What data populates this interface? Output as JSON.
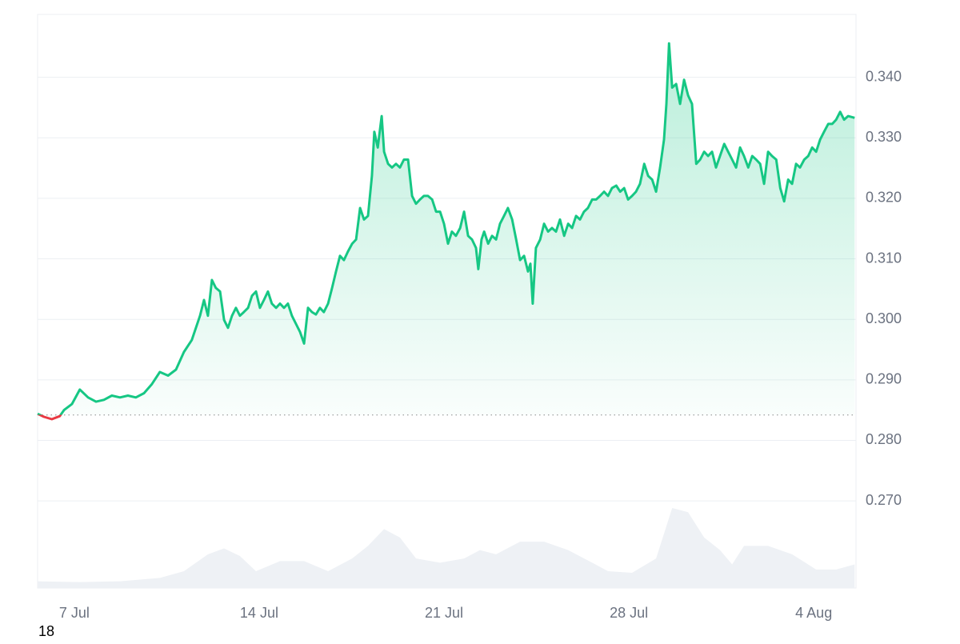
{
  "chart_data": {
    "type": "line",
    "x": [
      5.61,
      5.85,
      6.15,
      6.45,
      6.61,
      6.91,
      7.21,
      7.52,
      7.82,
      8.12,
      8.42,
      8.73,
      9.03,
      9.33,
      9.64,
      9.94,
      10.24,
      10.55,
      10.85,
      11.15,
      11.45,
      11.76,
      11.91,
      12.06,
      12.21,
      12.36,
      12.52,
      12.67,
      12.82,
      12.97,
      13.12,
      13.27,
      13.42,
      13.58,
      13.73,
      13.88,
      14.03,
      14.18,
      14.33,
      14.48,
      14.64,
      14.79,
      14.94,
      15.09,
      15.24,
      15.39,
      15.55,
      15.7,
      15.85,
      16.0,
      16.15,
      16.3,
      16.45,
      16.61,
      16.76,
      16.91,
      17.06,
      17.21,
      17.36,
      17.52,
      17.67,
      17.82,
      17.97,
      18.12,
      18.27,
      18.36,
      18.49,
      18.64,
      18.73,
      18.88,
      19.03,
      19.18,
      19.33,
      19.48,
      19.64,
      19.79,
      19.94,
      20.09,
      20.24,
      20.39,
      20.55,
      20.7,
      20.85,
      21.0,
      21.15,
      21.3,
      21.45,
      21.61,
      21.76,
      21.91,
      22.06,
      22.21,
      22.3,
      22.42,
      22.52,
      22.67,
      22.82,
      22.97,
      23.12,
      23.27,
      23.42,
      23.58,
      23.73,
      23.88,
      24.03,
      24.18,
      24.27,
      24.36,
      24.48,
      24.64,
      24.79,
      24.94,
      25.09,
      25.24,
      25.39,
      25.55,
      25.7,
      25.85,
      26.0,
      26.15,
      26.3,
      26.45,
      26.61,
      26.76,
      26.91,
      27.06,
      27.21,
      27.36,
      27.52,
      27.67,
      27.82,
      27.97,
      28.12,
      28.27,
      28.42,
      28.58,
      28.73,
      28.88,
      29.03,
      29.18,
      29.33,
      29.42,
      29.52,
      29.64,
      29.79,
      29.94,
      30.09,
      30.24,
      30.39,
      30.55,
      30.7,
      30.85,
      31.0,
      31.15,
      31.3,
      31.45,
      31.61,
      31.76,
      31.91,
      32.06,
      32.21,
      32.36,
      32.52,
      32.67,
      32.82,
      32.97,
      33.12,
      33.27,
      33.42,
      33.58,
      33.73,
      33.88,
      34.03,
      34.18,
      34.33,
      34.48,
      34.64,
      34.79,
      34.94,
      35.09,
      35.24,
      35.39,
      35.55,
      35.7,
      35.85,
      36.0,
      36.15,
      36.3,
      36.55
    ],
    "series": [
      {
        "color": "#16c784",
        "color_below": "#ea3943",
        "values": [
          0.2844,
          0.2839,
          0.2835,
          0.284,
          0.285,
          0.286,
          0.2884,
          0.2871,
          0.2864,
          0.2867,
          0.2874,
          0.2871,
          0.2874,
          0.2871,
          0.2878,
          0.2893,
          0.2913,
          0.2907,
          0.2917,
          0.2946,
          0.2966,
          0.3006,
          0.3032,
          0.3006,
          0.3065,
          0.3052,
          0.3046,
          0.2999,
          0.2986,
          0.3006,
          0.3019,
          0.3006,
          0.3012,
          0.3019,
          0.3039,
          0.3046,
          0.3019,
          0.3032,
          0.3046,
          0.3026,
          0.3019,
          0.3026,
          0.3019,
          0.3026,
          0.3006,
          0.2993,
          0.2979,
          0.296,
          0.3019,
          0.3012,
          0.3008,
          0.3019,
          0.3012,
          0.3026,
          0.3052,
          0.3079,
          0.3105,
          0.3098,
          0.3112,
          0.3125,
          0.3132,
          0.3184,
          0.3165,
          0.3171,
          0.3237,
          0.331,
          0.3284,
          0.3336,
          0.3277,
          0.3257,
          0.3251,
          0.3257,
          0.3251,
          0.3264,
          0.3264,
          0.3204,
          0.3191,
          0.3198,
          0.3204,
          0.3204,
          0.3198,
          0.3178,
          0.3178,
          0.3158,
          0.3125,
          0.3145,
          0.3138,
          0.3151,
          0.3178,
          0.3138,
          0.3132,
          0.3118,
          0.3083,
          0.3132,
          0.3145,
          0.3125,
          0.3138,
          0.3132,
          0.3158,
          0.3171,
          0.3184,
          0.3165,
          0.3132,
          0.3098,
          0.3105,
          0.3079,
          0.3092,
          0.3026,
          0.3118,
          0.3132,
          0.3158,
          0.3145,
          0.3151,
          0.3145,
          0.3165,
          0.3138,
          0.3158,
          0.3151,
          0.3171,
          0.3165,
          0.3178,
          0.3184,
          0.3198,
          0.3198,
          0.3204,
          0.3211,
          0.3204,
          0.3217,
          0.3221,
          0.3211,
          0.3217,
          0.3198,
          0.3204,
          0.3211,
          0.3224,
          0.3257,
          0.3237,
          0.3231,
          0.3211,
          0.3251,
          0.3297,
          0.3356,
          0.3456,
          0.3383,
          0.3389,
          0.3356,
          0.3396,
          0.337,
          0.3356,
          0.3257,
          0.3264,
          0.3277,
          0.327,
          0.3277,
          0.3251,
          0.327,
          0.329,
          0.3277,
          0.3264,
          0.3251,
          0.3284,
          0.327,
          0.3251,
          0.327,
          0.3264,
          0.3257,
          0.3224,
          0.3277,
          0.327,
          0.3264,
          0.3217,
          0.3195,
          0.3231,
          0.3224,
          0.3257,
          0.3251,
          0.3264,
          0.327,
          0.3284,
          0.3277,
          0.3297,
          0.331,
          0.3323,
          0.3323,
          0.333,
          0.3343,
          0.333,
          0.3336,
          0.3333
        ]
      }
    ],
    "baseline": 0.2842,
    "volume": {
      "color": "#eef1f5",
      "x": [
        5.61,
        7.21,
        8.73,
        10.24,
        11.15,
        12.06,
        12.67,
        13.27,
        13.88,
        14.79,
        15.7,
        16.61,
        17.52,
        18.12,
        18.73,
        19.33,
        19.94,
        20.85,
        21.76,
        22.36,
        22.97,
        23.88,
        24.79,
        25.7,
        26.61,
        27.21,
        28.12,
        29.03,
        29.64,
        30.24,
        30.85,
        31.45,
        31.91,
        32.36,
        33.27,
        34.18,
        35.09,
        35.85,
        36.55
      ],
      "values": [
        8,
        7,
        8,
        12,
        20,
        40,
        47,
        38,
        20,
        32,
        32,
        20,
        35,
        50,
        70,
        60,
        35,
        30,
        35,
        45,
        40,
        55,
        55,
        45,
        30,
        20,
        18,
        35,
        95,
        90,
        60,
        45,
        28,
        50,
        50,
        40,
        22,
        22,
        28
      ]
    },
    "xlim": [
      5.61,
      36.6
    ],
    "xticks": [
      {
        "value": 7,
        "label": "7 Jul"
      },
      {
        "value": 14,
        "label": "14 Jul"
      },
      {
        "value": 21,
        "label": "21 Jul"
      },
      {
        "value": 28,
        "label": "28 Jul"
      },
      {
        "value": 35,
        "label": "4 Aug"
      }
    ],
    "ylim": [
      0.2556,
      0.3504
    ],
    "yticks": [
      {
        "value": 0.27,
        "label": "0.270"
      },
      {
        "value": 0.28,
        "label": "0.280"
      },
      {
        "value": 0.29,
        "label": "0.290"
      },
      {
        "value": 0.3,
        "label": "0.300"
      },
      {
        "value": 0.31,
        "label": "0.310"
      },
      {
        "value": 0.32,
        "label": "0.320"
      },
      {
        "value": 0.33,
        "label": "0.330"
      },
      {
        "value": 0.34,
        "label": "0.340"
      }
    ],
    "grid": true
  },
  "corner_label": "18"
}
